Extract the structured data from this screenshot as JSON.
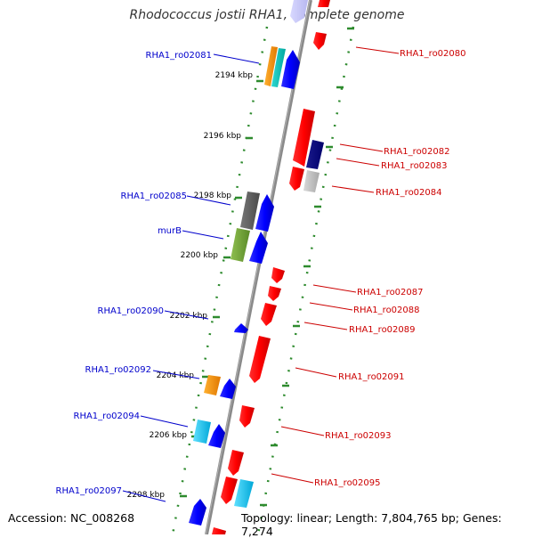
{
  "title": "Rhodococcus jostii RHA1, complete genome",
  "footer": {
    "accession": "Accession: NC_008268",
    "info": "Topology: linear; Length: 7,804,765 bp; Genes: 7,274"
  },
  "colors": {
    "forward_label": "#0000cc",
    "reverse_label": "#cc0000",
    "backbone": "#888888",
    "ruler": "#2e8b2e",
    "gene_red": "#ff0000",
    "gene_blue": "#0000ff"
  },
  "ticks": [
    {
      "label": "2194 kbp"
    },
    {
      "label": "2196 kbp"
    },
    {
      "label": "2198 kbp"
    },
    {
      "label": "2200 kbp"
    },
    {
      "label": "2202 kbp"
    },
    {
      "label": "2204 kbp"
    },
    {
      "label": "2206 kbp"
    },
    {
      "label": "2208 kbp"
    }
  ],
  "labels_left": [
    {
      "text": "RHA1_ro02081"
    },
    {
      "text": "RHA1_ro02085"
    },
    {
      "text": "murB"
    },
    {
      "text": "RHA1_ro02090"
    },
    {
      "text": "RHA1_ro02092"
    },
    {
      "text": "RHA1_ro02094"
    },
    {
      "text": "RHA1_ro02097"
    }
  ],
  "labels_right": [
    {
      "text": "RHA1_ro02080"
    },
    {
      "text": "RHA1_ro02082"
    },
    {
      "text": "RHA1_ro02083"
    },
    {
      "text": "RHA1_ro02084"
    },
    {
      "text": "RHA1_ro02087"
    },
    {
      "text": "RHA1_ro02088"
    },
    {
      "text": "RHA1_ro02089"
    },
    {
      "text": "RHA1_ro02091"
    },
    {
      "text": "RHA1_ro02093"
    },
    {
      "text": "RHA1_ro02095"
    }
  ]
}
